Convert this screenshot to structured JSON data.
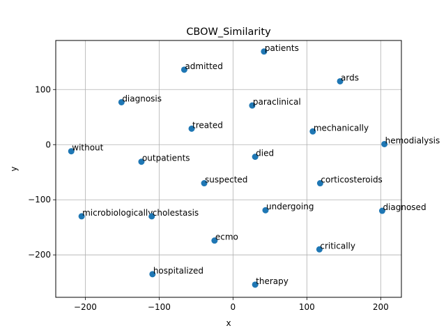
{
  "chart_data": {
    "type": "scatter",
    "title": "CBOW_Similarity",
    "xlabel": "x",
    "ylabel": "y",
    "xlim": [
      -240,
      228
    ],
    "ylim": [
      -277,
      189
    ],
    "xticks": [
      -200,
      -100,
      0,
      100,
      200
    ],
    "yticks": [
      -200,
      -100,
      0,
      100
    ],
    "xtick_labels": [
      "−200",
      "−100",
      "0",
      "100",
      "200"
    ],
    "ytick_labels": [
      "−200",
      "−100",
      "0",
      "100"
    ],
    "grid": true,
    "marker_color": "#1f77b4",
    "points": [
      {
        "label": "patients",
        "x": 42,
        "y": 169
      },
      {
        "label": "admitted",
        "x": -66,
        "y": 136
      },
      {
        "label": "ards",
        "x": 145,
        "y": 115
      },
      {
        "label": "diagnosis",
        "x": -151,
        "y": 77
      },
      {
        "label": "paraclinical",
        "x": 26,
        "y": 71
      },
      {
        "label": "treated",
        "x": -56,
        "y": 29
      },
      {
        "label": "mechanically",
        "x": 108,
        "y": 24
      },
      {
        "label": "hemodialysis",
        "x": 205,
        "y": 1
      },
      {
        "label": "without",
        "x": -219,
        "y": -12
      },
      {
        "label": "died",
        "x": 30,
        "y": -22
      },
      {
        "label": "outpatients",
        "x": -124,
        "y": -31
      },
      {
        "label": "suspected",
        "x": -39,
        "y": -70
      },
      {
        "label": "corticosteroids",
        "x": 118,
        "y": -70
      },
      {
        "label": "undergoing",
        "x": 44,
        "y": -119
      },
      {
        "label": "diagnosed",
        "x": 202,
        "y": -120
      },
      {
        "label": "microbiologically",
        "x": -205,
        "y": -130
      },
      {
        "label": "cholestasis",
        "x": -110,
        "y": -130
      },
      {
        "label": "ecmo",
        "x": -25,
        "y": -174
      },
      {
        "label": "critically",
        "x": 117,
        "y": -190
      },
      {
        "label": "hospitalized",
        "x": -109,
        "y": -235
      },
      {
        "label": "therapy",
        "x": 30,
        "y": -254
      }
    ]
  }
}
